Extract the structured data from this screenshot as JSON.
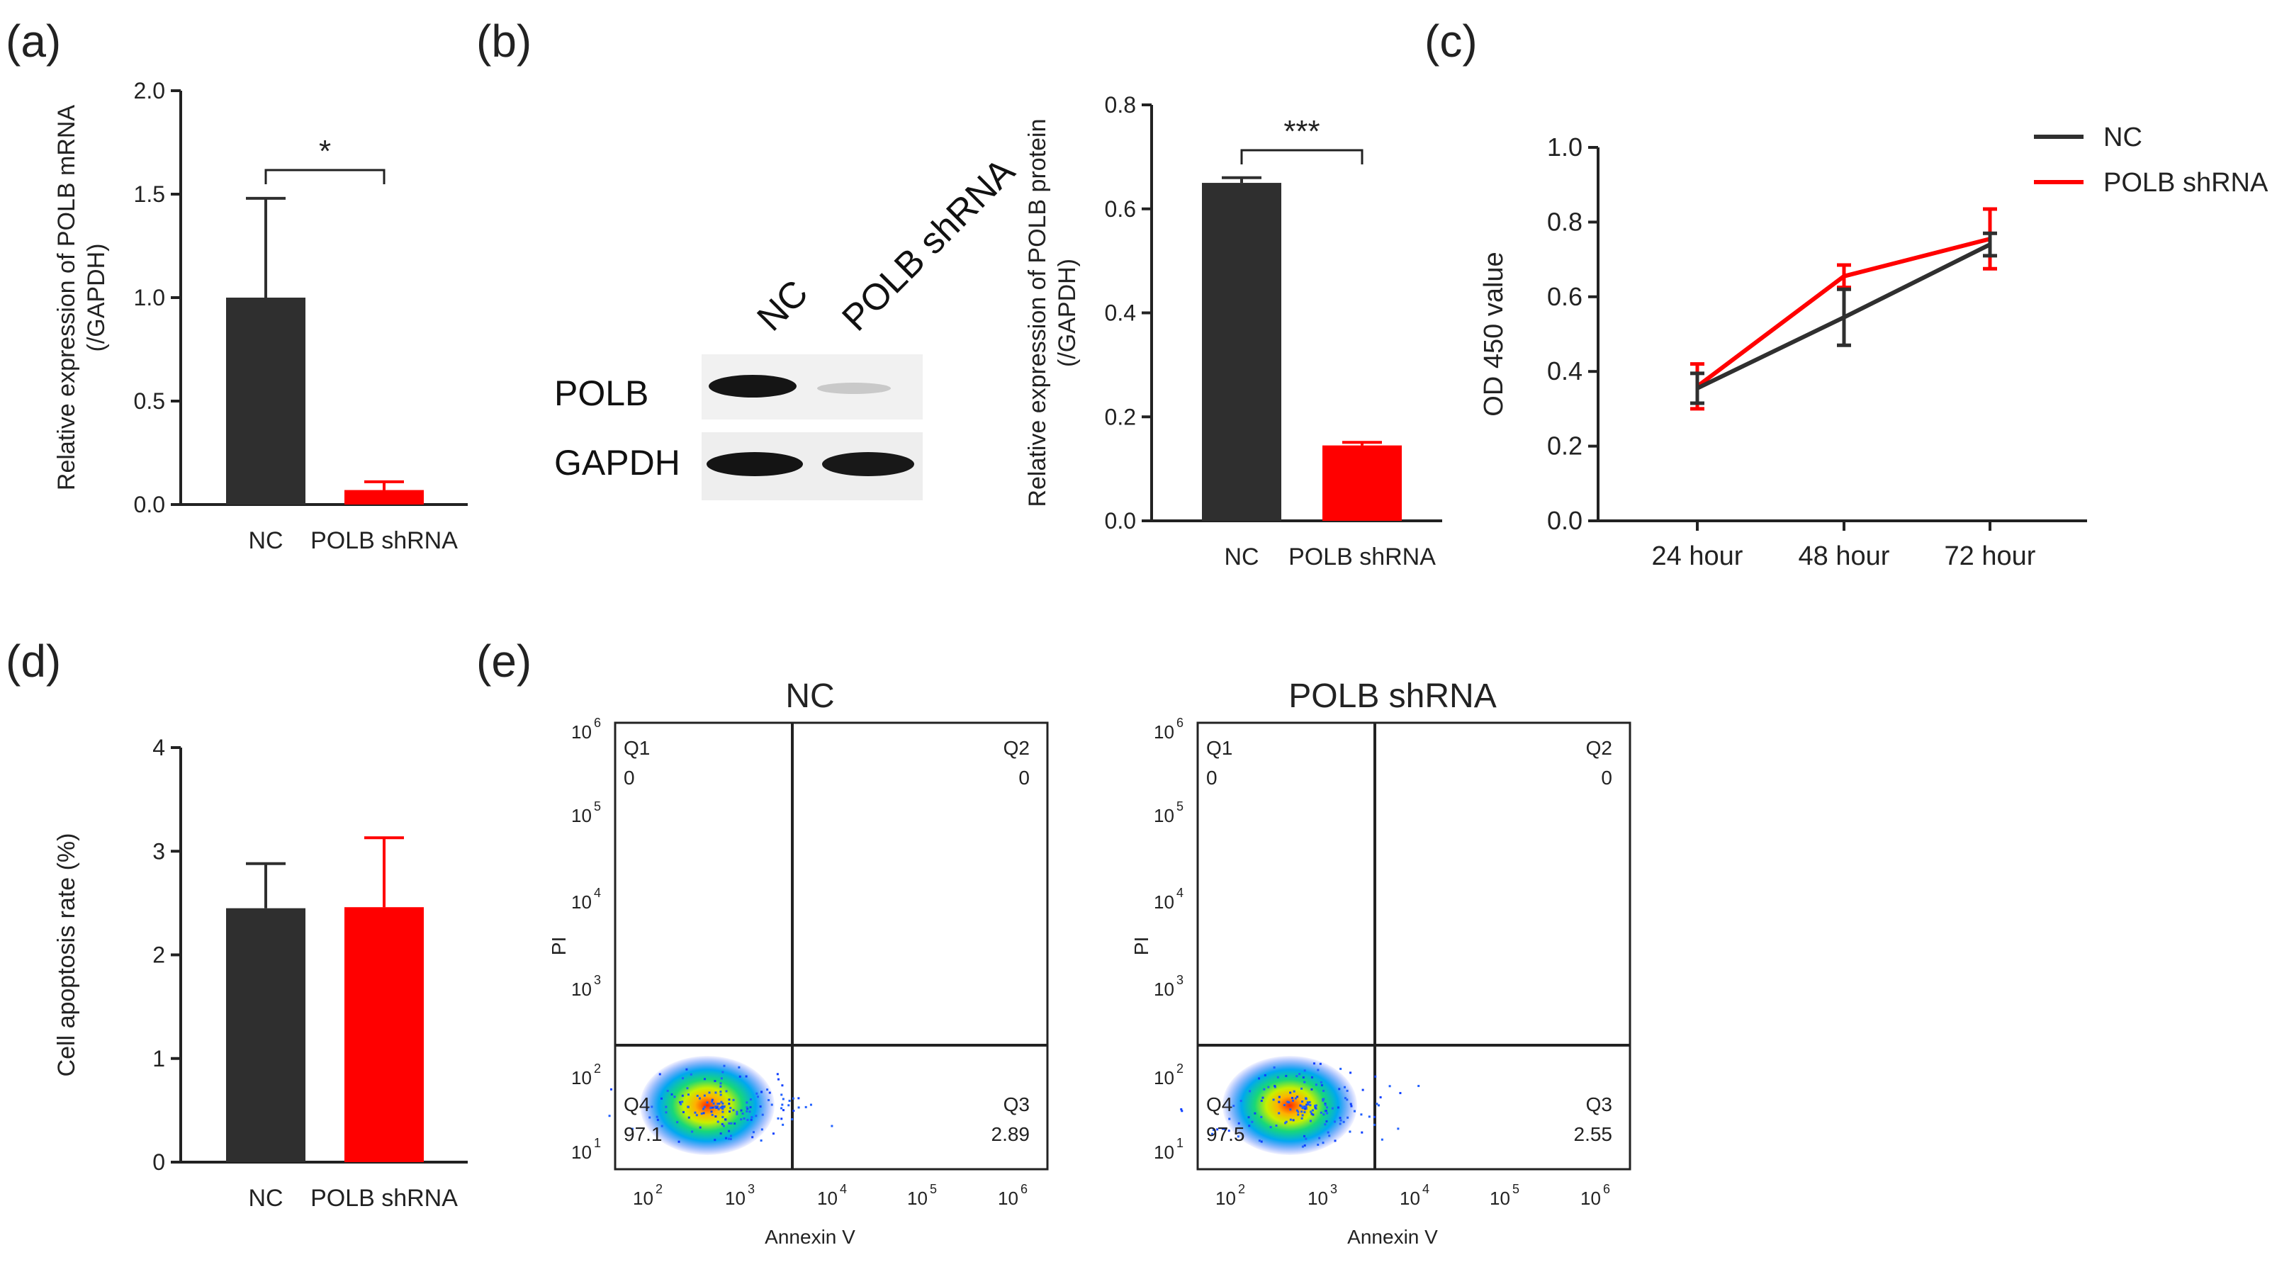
{
  "panel_labels": {
    "a": "(a)",
    "b": "(b)",
    "c": "(c)",
    "d": "(d)",
    "e": "(e)"
  },
  "colors": {
    "nc": "#2f2f2f",
    "shrna": "#ff0000",
    "axis": "#222222"
  },
  "blot": {
    "lanes": [
      "NC",
      "POLB shRNA"
    ],
    "rows": [
      "POLB",
      "GAPDH"
    ]
  },
  "chart_data": [
    {
      "id": "a",
      "type": "bar",
      "categories": [
        "NC",
        "POLB shRNA"
      ],
      "values": [
        1.0,
        0.07
      ],
      "errors": [
        0.48,
        0.04
      ],
      "ylabel": "Relative expression of POLB mRNA",
      "ylabel2": "(/GAPDH)",
      "ylim": [
        0,
        2.0
      ],
      "yticks": [
        "0.0",
        "0.5",
        "1.0",
        "1.5",
        "2.0"
      ],
      "significance": "*"
    },
    {
      "id": "b",
      "type": "bar",
      "categories": [
        "NC",
        "POLB shRNA"
      ],
      "values": [
        0.65,
        0.145
      ],
      "errors": [
        0.01,
        0.006
      ],
      "ylabel": "Relative expression of POLB protein",
      "ylabel2": "(/GAPDH)",
      "ylim": [
        0,
        0.8
      ],
      "yticks": [
        "0.0",
        "0.2",
        "0.4",
        "0.6",
        "0.8"
      ],
      "significance": "***"
    },
    {
      "id": "c",
      "type": "line",
      "categories": [
        "24 hour",
        "48 hour",
        "72 hour"
      ],
      "series": [
        {
          "name": "NC",
          "values": [
            0.355,
            0.545,
            0.74
          ],
          "errors": [
            0.04,
            0.075,
            0.03
          ]
        },
        {
          "name": "POLB shRNA",
          "values": [
            0.36,
            0.655,
            0.755
          ],
          "errors": [
            0.06,
            0.03,
            0.08
          ]
        }
      ],
      "ylabel": "OD 450 value",
      "ylim": [
        0,
        1.0
      ],
      "yticks": [
        "0.0",
        "0.2",
        "0.4",
        "0.6",
        "0.8",
        "1.0"
      ],
      "legend": "top-right"
    },
    {
      "id": "d",
      "type": "bar",
      "categories": [
        "NC",
        "POLB shRNA"
      ],
      "values": [
        2.45,
        2.46
      ],
      "errors": [
        0.43,
        0.67
      ],
      "ylabel": "Cell apoptosis rate (%)",
      "ylim": [
        0,
        4
      ],
      "yticks": [
        "0",
        "1",
        "2",
        "3",
        "4"
      ]
    },
    {
      "id": "e",
      "type": "scatter",
      "xlabel": "Annexin V",
      "ylabel": "PI",
      "plots": [
        {
          "title": "NC",
          "q1": "0",
          "q2": "0",
          "q3": "2.89",
          "q4": "97.1"
        },
        {
          "title": "POLB shRNA",
          "q1": "0",
          "q2": "0",
          "q3": "2.55",
          "q4": "97.5"
        }
      ],
      "quadrant_names": [
        "Q1",
        "Q2",
        "Q3",
        "Q4"
      ],
      "xtick_exponents": [
        "2",
        "3",
        "4",
        "5",
        "6"
      ],
      "ytick_exponents": [
        "1",
        "2",
        "3",
        "4",
        "5",
        "6"
      ]
    }
  ]
}
